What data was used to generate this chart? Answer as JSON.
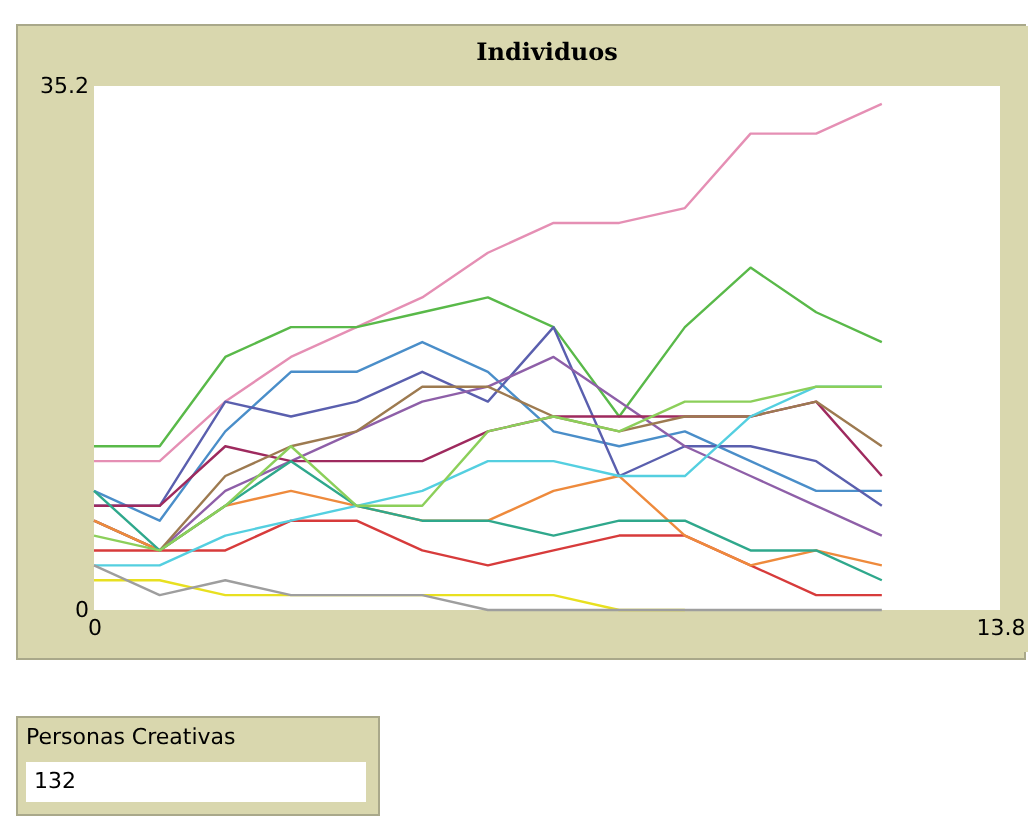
{
  "chart_data": {
    "type": "line",
    "title": "Individuos",
    "annotations": [
      "Personas Creativas",
      "132"
    ],
    "x": [
      0,
      1,
      2,
      3,
      4,
      5,
      6,
      7,
      8,
      9,
      10,
      11,
      12
    ],
    "xlim": [
      0,
      13.8
    ],
    "ylim": [
      0,
      35.2
    ],
    "xticks": [
      0,
      13.8
    ],
    "yticks": [
      0,
      35.2
    ],
    "grid": false,
    "legend": false,
    "marker": "none",
    "line_style": "solid",
    "series": [
      {
        "color": "#e58fb4",
        "values": [
          10,
          10,
          14,
          17,
          19,
          21,
          24,
          26,
          26,
          27,
          32,
          32,
          34
        ]
      },
      {
        "color": "#59b949",
        "values": [
          11,
          11,
          17,
          19,
          19,
          20,
          21,
          19,
          13,
          19,
          23,
          20,
          18
        ]
      },
      {
        "color": "#4a8ec9",
        "values": [
          8,
          6,
          12,
          16,
          16,
          18,
          16,
          12,
          11,
          12,
          10,
          8,
          8
        ]
      },
      {
        "color": "#5a5fae",
        "values": [
          7,
          7,
          14,
          13,
          14,
          16,
          14,
          19,
          9,
          11,
          11,
          10,
          7
        ]
      },
      {
        "color": "#8e5fa8",
        "values": [
          6,
          4,
          8,
          10,
          12,
          14,
          15,
          17,
          14,
          11,
          9,
          7,
          5
        ]
      },
      {
        "color": "#9e2a5e",
        "values": [
          7,
          7,
          11,
          10,
          10,
          10,
          12,
          13,
          13,
          13,
          13,
          14,
          9
        ]
      },
      {
        "color": "#9d7a50",
        "values": [
          6,
          4,
          9,
          11,
          12,
          15,
          15,
          13,
          12,
          13,
          13,
          14,
          11
        ]
      },
      {
        "color": "#d73b3b",
        "values": [
          4,
          4,
          4,
          6,
          6,
          4,
          3,
          4,
          5,
          5,
          3,
          1,
          1
        ]
      },
      {
        "color": "#ee8a3c",
        "values": [
          6,
          4,
          7,
          8,
          7,
          6,
          6,
          8,
          9,
          5,
          3,
          4,
          3
        ]
      },
      {
        "color": "#2fa88c",
        "values": [
          8,
          4,
          7,
          10,
          7,
          6,
          6,
          5,
          6,
          6,
          4,
          4,
          2
        ]
      },
      {
        "color": "#54cfe0",
        "values": [
          3,
          3,
          5,
          6,
          7,
          8,
          10,
          10,
          9,
          9,
          13,
          15,
          15
        ]
      },
      {
        "color": "#8ccf5a",
        "values": [
          5,
          4,
          7,
          11,
          7,
          7,
          12,
          13,
          12,
          14,
          14,
          15,
          15
        ]
      },
      {
        "color": "#e8e020",
        "values": [
          2,
          2,
          1,
          1,
          1,
          1,
          1,
          1,
          0,
          0,
          null,
          null,
          null
        ]
      },
      {
        "color": "#9e9e9e",
        "values": [
          3,
          1,
          2,
          1,
          1,
          1,
          0,
          0,
          0,
          0,
          0,
          0,
          0
        ]
      }
    ]
  }
}
